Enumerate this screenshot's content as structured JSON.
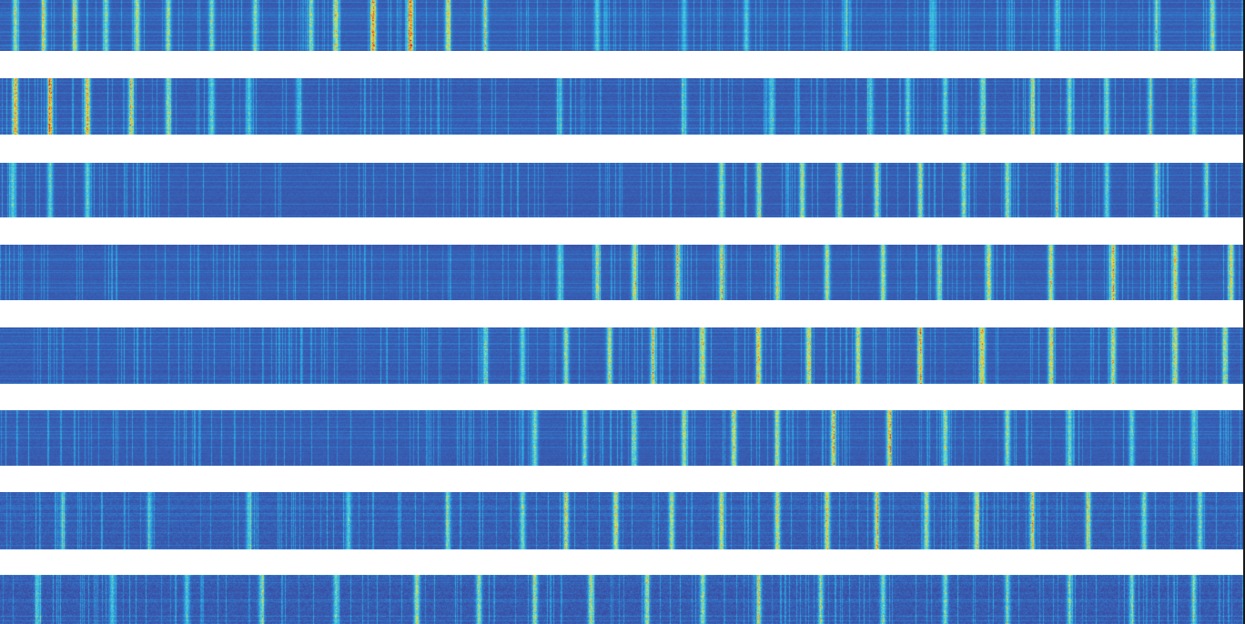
{
  "chart_data": {
    "type": "heatmap",
    "title": "",
    "xlabel": "",
    "ylabel": "",
    "colormap": "jet",
    "colormap_stops": [
      "#3b4ca2",
      "#2f7fd0",
      "#33b8e3",
      "#6cd6c7",
      "#e6e046",
      "#f08a2a",
      "#c82320"
    ],
    "value_range": [
      0,
      1
    ],
    "background_value": 0.06,
    "panel_count": 8,
    "panels": [
      {
        "name": "strip-1",
        "columns": 700,
        "rows": 30,
        "noise": 0.05,
        "pattern": "vertical-bands",
        "peaks": [
          {
            "x": 0.012,
            "v": 0.5
          },
          {
            "x": 0.035,
            "v": 0.5
          },
          {
            "x": 0.06,
            "v": 0.55
          },
          {
            "x": 0.085,
            "v": 0.45
          },
          {
            "x": 0.11,
            "v": 0.55
          },
          {
            "x": 0.135,
            "v": 0.5
          },
          {
            "x": 0.17,
            "v": 0.45
          },
          {
            "x": 0.205,
            "v": 0.45
          },
          {
            "x": 0.25,
            "v": 0.45
          },
          {
            "x": 0.27,
            "v": 0.6
          },
          {
            "x": 0.3,
            "v": 0.75
          },
          {
            "x": 0.33,
            "v": 0.8
          },
          {
            "x": 0.36,
            "v": 0.6
          },
          {
            "x": 0.39,
            "v": 0.45
          },
          {
            "x": 0.48,
            "v": 0.35
          },
          {
            "x": 0.55,
            "v": 0.3
          },
          {
            "x": 0.6,
            "v": 0.35
          },
          {
            "x": 0.68,
            "v": 0.3
          },
          {
            "x": 0.75,
            "v": 0.3
          },
          {
            "x": 0.85,
            "v": 0.35
          },
          {
            "x": 0.93,
            "v": 0.4
          },
          {
            "x": 0.975,
            "v": 0.5
          }
        ]
      },
      {
        "name": "strip-2",
        "columns": 700,
        "rows": 30,
        "noise": 0.06,
        "pattern": "vertical-bands",
        "peaks": [
          {
            "x": 0.012,
            "v": 0.7
          },
          {
            "x": 0.04,
            "v": 0.7
          },
          {
            "x": 0.07,
            "v": 0.7
          },
          {
            "x": 0.105,
            "v": 0.55
          },
          {
            "x": 0.135,
            "v": 0.5
          },
          {
            "x": 0.17,
            "v": 0.4
          },
          {
            "x": 0.2,
            "v": 0.35
          },
          {
            "x": 0.24,
            "v": 0.3
          },
          {
            "x": 0.45,
            "v": 0.3
          },
          {
            "x": 0.55,
            "v": 0.3
          },
          {
            "x": 0.62,
            "v": 0.35
          },
          {
            "x": 0.7,
            "v": 0.35
          },
          {
            "x": 0.73,
            "v": 0.4
          },
          {
            "x": 0.76,
            "v": 0.4
          },
          {
            "x": 0.79,
            "v": 0.45
          },
          {
            "x": 0.83,
            "v": 0.45
          },
          {
            "x": 0.86,
            "v": 0.45
          },
          {
            "x": 0.89,
            "v": 0.45
          },
          {
            "x": 0.925,
            "v": 0.4
          },
          {
            "x": 0.96,
            "v": 0.4
          }
        ]
      },
      {
        "name": "strip-3",
        "columns": 700,
        "rows": 30,
        "noise": 0.05,
        "pattern": "vertical-bands",
        "peaks": [
          {
            "x": 0.01,
            "v": 0.4
          },
          {
            "x": 0.04,
            "v": 0.4
          },
          {
            "x": 0.07,
            "v": 0.4
          },
          {
            "x": 0.58,
            "v": 0.5
          },
          {
            "x": 0.61,
            "v": 0.5
          },
          {
            "x": 0.645,
            "v": 0.55
          },
          {
            "x": 0.675,
            "v": 0.55
          },
          {
            "x": 0.705,
            "v": 0.55
          },
          {
            "x": 0.74,
            "v": 0.55
          },
          {
            "x": 0.775,
            "v": 0.5
          },
          {
            "x": 0.81,
            "v": 0.5
          },
          {
            "x": 0.85,
            "v": 0.45
          },
          {
            "x": 0.89,
            "v": 0.4
          },
          {
            "x": 0.93,
            "v": 0.4
          },
          {
            "x": 0.97,
            "v": 0.4
          }
        ]
      },
      {
        "name": "strip-4",
        "columns": 700,
        "rows": 30,
        "noise": 0.05,
        "pattern": "vertical-bands",
        "peaks": [
          {
            "x": 0.45,
            "v": 0.4
          },
          {
            "x": 0.48,
            "v": 0.45
          },
          {
            "x": 0.51,
            "v": 0.55
          },
          {
            "x": 0.545,
            "v": 0.55
          },
          {
            "x": 0.58,
            "v": 0.55
          },
          {
            "x": 0.625,
            "v": 0.5
          },
          {
            "x": 0.665,
            "v": 0.55
          },
          {
            "x": 0.71,
            "v": 0.55
          },
          {
            "x": 0.755,
            "v": 0.5
          },
          {
            "x": 0.795,
            "v": 0.6
          },
          {
            "x": 0.845,
            "v": 0.6
          },
          {
            "x": 0.895,
            "v": 0.65
          },
          {
            "x": 0.945,
            "v": 0.65
          },
          {
            "x": 0.99,
            "v": 0.6
          }
        ]
      },
      {
        "name": "strip-5",
        "columns": 700,
        "rows": 30,
        "noise": 0.06,
        "pattern": "vertical-bands",
        "peaks": [
          {
            "x": 0.39,
            "v": 0.4
          },
          {
            "x": 0.42,
            "v": 0.4
          },
          {
            "x": 0.455,
            "v": 0.5
          },
          {
            "x": 0.49,
            "v": 0.55
          },
          {
            "x": 0.525,
            "v": 0.55
          },
          {
            "x": 0.565,
            "v": 0.6
          },
          {
            "x": 0.61,
            "v": 0.65
          },
          {
            "x": 0.65,
            "v": 0.6
          },
          {
            "x": 0.69,
            "v": 0.6
          },
          {
            "x": 0.74,
            "v": 0.65
          },
          {
            "x": 0.79,
            "v": 0.65
          },
          {
            "x": 0.845,
            "v": 0.6
          },
          {
            "x": 0.895,
            "v": 0.6
          },
          {
            "x": 0.945,
            "v": 0.55
          },
          {
            "x": 0.985,
            "v": 0.5
          }
        ]
      },
      {
        "name": "strip-6",
        "columns": 700,
        "rows": 30,
        "noise": 0.06,
        "pattern": "vertical-bands",
        "peaks": [
          {
            "x": 0.43,
            "v": 0.45
          },
          {
            "x": 0.47,
            "v": 0.45
          },
          {
            "x": 0.51,
            "v": 0.45
          },
          {
            "x": 0.55,
            "v": 0.55
          },
          {
            "x": 0.59,
            "v": 0.6
          },
          {
            "x": 0.625,
            "v": 0.55
          },
          {
            "x": 0.67,
            "v": 0.6
          },
          {
            "x": 0.715,
            "v": 0.65
          },
          {
            "x": 0.76,
            "v": 0.5
          },
          {
            "x": 0.81,
            "v": 0.5
          },
          {
            "x": 0.86,
            "v": 0.45
          },
          {
            "x": 0.91,
            "v": 0.4
          },
          {
            "x": 0.96,
            "v": 0.4
          }
        ]
      },
      {
        "name": "strip-7",
        "columns": 700,
        "rows": 30,
        "noise": 0.1,
        "pattern": "vertical-bands",
        "peaks": [
          {
            "x": 0.05,
            "v": 0.3
          },
          {
            "x": 0.12,
            "v": 0.3
          },
          {
            "x": 0.2,
            "v": 0.35
          },
          {
            "x": 0.28,
            "v": 0.35
          },
          {
            "x": 0.36,
            "v": 0.4
          },
          {
            "x": 0.42,
            "v": 0.45
          },
          {
            "x": 0.455,
            "v": 0.55
          },
          {
            "x": 0.495,
            "v": 0.6
          },
          {
            "x": 0.54,
            "v": 0.55
          },
          {
            "x": 0.58,
            "v": 0.6
          },
          {
            "x": 0.625,
            "v": 0.6
          },
          {
            "x": 0.665,
            "v": 0.65
          },
          {
            "x": 0.705,
            "v": 0.6
          },
          {
            "x": 0.745,
            "v": 0.55
          },
          {
            "x": 0.785,
            "v": 0.55
          },
          {
            "x": 0.83,
            "v": 0.5
          },
          {
            "x": 0.875,
            "v": 0.5
          },
          {
            "x": 0.92,
            "v": 0.45
          },
          {
            "x": 0.965,
            "v": 0.45
          }
        ]
      },
      {
        "name": "strip-8",
        "columns": 700,
        "rows": 30,
        "noise": 0.12,
        "pattern": "vertical-bands",
        "peaks": [
          {
            "x": 0.03,
            "v": 0.35
          },
          {
            "x": 0.09,
            "v": 0.35
          },
          {
            "x": 0.15,
            "v": 0.35
          },
          {
            "x": 0.21,
            "v": 0.4
          },
          {
            "x": 0.27,
            "v": 0.4
          },
          {
            "x": 0.335,
            "v": 0.55
          },
          {
            "x": 0.385,
            "v": 0.5
          },
          {
            "x": 0.43,
            "v": 0.5
          },
          {
            "x": 0.475,
            "v": 0.55
          },
          {
            "x": 0.52,
            "v": 0.5
          },
          {
            "x": 0.565,
            "v": 0.5
          },
          {
            "x": 0.61,
            "v": 0.5
          },
          {
            "x": 0.66,
            "v": 0.45
          },
          {
            "x": 0.71,
            "v": 0.45
          },
          {
            "x": 0.76,
            "v": 0.45
          },
          {
            "x": 0.81,
            "v": 0.4
          },
          {
            "x": 0.86,
            "v": 0.4
          },
          {
            "x": 0.91,
            "v": 0.4
          },
          {
            "x": 0.96,
            "v": 0.4
          }
        ]
      }
    ]
  }
}
